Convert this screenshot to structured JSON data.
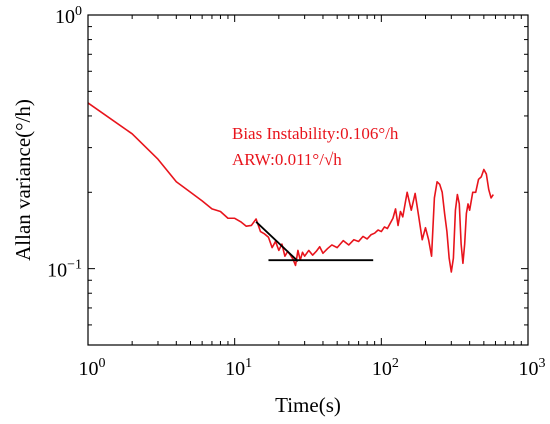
{
  "chart_data": {
    "type": "line",
    "xscale": "log",
    "yscale": "log",
    "xlim": [
      1,
      1000
    ],
    "ylim": [
      0.05,
      1
    ],
    "xlabel": "Time(s)",
    "ylabel": "Allan variance(°/h)",
    "x_ticks": [
      {
        "value": 1,
        "base": "10",
        "exp": "0"
      },
      {
        "value": 10,
        "base": "10",
        "exp": "1"
      },
      {
        "value": 100,
        "base": "10",
        "exp": "2"
      },
      {
        "value": 1000,
        "base": "10",
        "exp": "3"
      }
    ],
    "y_ticks": [
      {
        "value": 0.1,
        "base": "10",
        "exp": "−1"
      },
      {
        "value": 1,
        "base": "10",
        "exp": "0"
      }
    ],
    "annotations": [
      {
        "text": "Bias Instability:0.106°/h",
        "color": "#e8141c"
      },
      {
        "text": "ARW:0.011°/√h",
        "color": "#e8141c"
      }
    ],
    "series": [
      {
        "color": "#e8141c",
        "x": [
          1,
          2,
          3,
          4,
          5,
          6,
          7,
          8,
          9,
          10,
          11,
          12,
          13,
          14,
          15,
          16,
          17,
          18,
          19,
          20,
          21,
          22,
          23,
          24,
          25,
          26,
          27,
          28,
          29,
          30,
          32,
          34,
          36,
          38,
          40,
          43,
          46,
          50,
          55,
          60,
          65,
          70,
          75,
          80,
          85,
          90,
          95,
          100,
          105,
          110,
          115,
          120,
          125,
          130,
          135,
          140,
          150,
          160,
          170,
          180,
          190,
          200,
          210,
          220,
          230,
          240,
          250,
          260,
          270,
          280,
          290,
          300,
          310,
          320,
          330,
          340,
          350,
          360,
          370,
          380,
          390,
          400,
          420,
          440,
          460,
          480,
          500,
          520,
          540,
          560,
          580
        ],
        "y": [
          0.45,
          0.34,
          0.27,
          0.22,
          0.2,
          0.185,
          0.172,
          0.168,
          0.158,
          0.158,
          0.153,
          0.147,
          0.148,
          0.157,
          0.14,
          0.137,
          0.133,
          0.121,
          0.128,
          0.118,
          0.125,
          0.112,
          0.117,
          0.113,
          0.109,
          0.103,
          0.118,
          0.108,
          0.116,
          0.112,
          0.118,
          0.113,
          0.117,
          0.122,
          0.115,
          0.12,
          0.124,
          0.121,
          0.129,
          0.124,
          0.13,
          0.128,
          0.134,
          0.131,
          0.136,
          0.138,
          0.142,
          0.14,
          0.146,
          0.144,
          0.151,
          0.158,
          0.172,
          0.148,
          0.168,
          0.16,
          0.2,
          0.17,
          0.198,
          0.16,
          0.13,
          0.145,
          0.13,
          0.112,
          0.19,
          0.22,
          0.215,
          0.2,
          0.165,
          0.14,
          0.11,
          0.097,
          0.11,
          0.17,
          0.196,
          0.18,
          0.125,
          0.105,
          0.125,
          0.165,
          0.18,
          0.17,
          0.2,
          0.2,
          0.225,
          0.23,
          0.246,
          0.236,
          0.205,
          0.19,
          0.196
        ]
      },
      {
        "color": "#000000",
        "x": [
          14,
          27
        ],
        "y": [
          0.153,
          0.107
        ]
      },
      {
        "color": "#000000",
        "x": [
          17,
          88
        ],
        "y": [
          0.108,
          0.108
        ]
      }
    ]
  }
}
